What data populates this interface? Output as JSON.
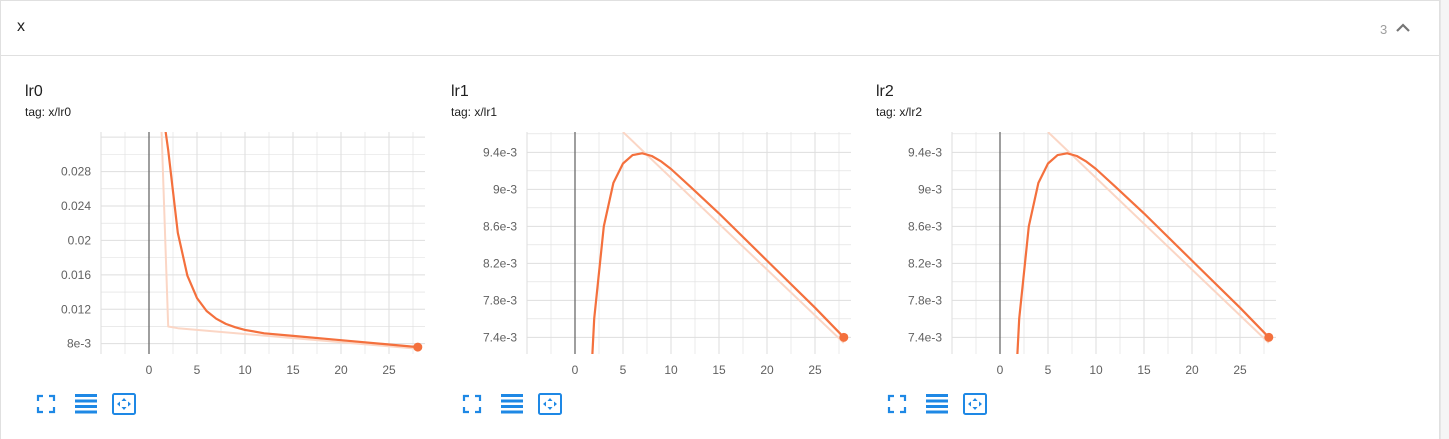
{
  "group": {
    "title": "x",
    "count": "3",
    "collapse_icon": "chevron-up-icon"
  },
  "colors": {
    "series": "#f4703d",
    "smoothed_raw": "#fbd6c5",
    "axis": "#6b6b6b",
    "grid": "#dedede",
    "button": "#1e88e5"
  },
  "cards": [
    {
      "title": "lr0",
      "tag": "tag: x/lr0",
      "buttons": [
        "fullscreen-icon",
        "data-table-icon",
        "fit-domain-icon"
      ]
    },
    {
      "title": "lr1",
      "tag": "tag: x/lr1",
      "buttons": [
        "fullscreen-icon",
        "data-table-icon",
        "fit-domain-icon"
      ]
    },
    {
      "title": "lr2",
      "tag": "tag: x/lr2",
      "buttons": [
        "fullscreen-icon",
        "data-table-icon",
        "fit-domain-icon"
      ]
    }
  ],
  "chart_data": [
    {
      "type": "line",
      "title": "lr0",
      "xlim": [
        -5,
        30
      ],
      "ylim": [
        0.0068,
        0.0326
      ],
      "xticks": [
        0,
        5,
        10,
        15,
        20,
        25
      ],
      "xtick_labels": [
        "0",
        "5",
        "10",
        "15",
        "20",
        "25"
      ],
      "yticks": [
        0.008,
        0.012,
        0.016,
        0.02,
        0.024,
        0.028
      ],
      "ytick_labels": [
        "8e-3",
        "0.012",
        "0.016",
        "0.02",
        "0.024",
        "0.028"
      ],
      "series": [
        {
          "role": "smoothed",
          "x": [
            1.7,
            2,
            3,
            4,
            5,
            6,
            7,
            8,
            9,
            10,
            12,
            15,
            20,
            25,
            28
          ],
          "y": [
            0.0329,
            0.0305,
            0.0209,
            0.0159,
            0.0133,
            0.0118,
            0.0109,
            0.0103,
            0.0099,
            0.0096,
            0.0092,
            0.0089,
            0.0084,
            0.0079,
            0.0076
          ]
        },
        {
          "role": "raw",
          "x": [
            1.3,
            2,
            3,
            28
          ],
          "y": [
            0.0329,
            0.01,
            0.0098,
            0.0074
          ]
        }
      ]
    },
    {
      "type": "line",
      "title": "lr1",
      "xlim": [
        -5,
        30
      ],
      "ylim": [
        0.00722,
        0.00962
      ],
      "xticks": [
        0,
        5,
        10,
        15,
        20,
        25
      ],
      "xtick_labels": [
        "0",
        "5",
        "10",
        "15",
        "20",
        "25"
      ],
      "yticks": [
        0.0074,
        0.0078,
        0.0082,
        0.0086,
        0.009,
        0.0094
      ],
      "ytick_labels": [
        "7.4e-3",
        "7.8e-3",
        "8.2e-3",
        "8.6e-3",
        "9e-3",
        "9.4e-3"
      ],
      "series": [
        {
          "role": "smoothed",
          "x": [
            1.8,
            2,
            3,
            4,
            5,
            6,
            7,
            8,
            9,
            10,
            12,
            15,
            20,
            25,
            28
          ],
          "y": [
            0.0072,
            0.0076,
            0.0086,
            0.00907,
            0.00928,
            0.00937,
            0.00939,
            0.00936,
            0.0093,
            0.00922,
            0.00903,
            0.00874,
            0.00823,
            0.00772,
            0.0074
          ]
        },
        {
          "role": "raw",
          "x": [
            5,
            28
          ],
          "y": [
            0.00962,
            0.00734
          ]
        }
      ]
    },
    {
      "type": "line",
      "title": "lr2",
      "xlim": [
        -5,
        30
      ],
      "ylim": [
        0.00722,
        0.00962
      ],
      "xticks": [
        0,
        5,
        10,
        15,
        20,
        25
      ],
      "xtick_labels": [
        "0",
        "5",
        "10",
        "15",
        "20",
        "25"
      ],
      "yticks": [
        0.0074,
        0.0078,
        0.0082,
        0.0086,
        0.009,
        0.0094
      ],
      "ytick_labels": [
        "7.4e-3",
        "7.8e-3",
        "8.2e-3",
        "8.6e-3",
        "9e-3",
        "9.4e-3"
      ],
      "series": [
        {
          "role": "smoothed",
          "x": [
            1.8,
            2,
            3,
            4,
            5,
            6,
            7,
            8,
            9,
            10,
            12,
            15,
            20,
            25,
            28
          ],
          "y": [
            0.0072,
            0.0076,
            0.0086,
            0.00907,
            0.00928,
            0.00937,
            0.00939,
            0.00936,
            0.0093,
            0.00922,
            0.00903,
            0.00874,
            0.00823,
            0.00772,
            0.0074
          ]
        },
        {
          "role": "raw",
          "x": [
            5,
            28
          ],
          "y": [
            0.00962,
            0.00734
          ]
        }
      ]
    }
  ]
}
